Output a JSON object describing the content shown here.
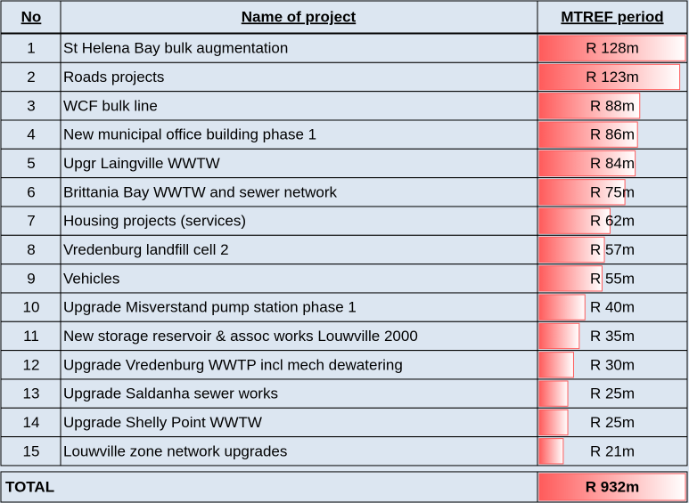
{
  "table": {
    "headers": [
      "No",
      "Name of project",
      "MTREF period"
    ],
    "rows": [
      {
        "no": 1,
        "name": "St Helena Bay bulk augmentation",
        "value": 128,
        "value_label": "R 128m"
      },
      {
        "no": 2,
        "name": "Roads projects",
        "value": 123,
        "value_label": "R 123m"
      },
      {
        "no": 3,
        "name": "WCF bulk line",
        "value": 88,
        "value_label": "R 88m"
      },
      {
        "no": 4,
        "name": "New municipal office building phase 1",
        "value": 86,
        "value_label": "R 86m"
      },
      {
        "no": 5,
        "name": "Upgr Laingville WWTW",
        "value": 84,
        "value_label": "R 84m"
      },
      {
        "no": 6,
        "name": "Brittania Bay WWTW and sewer network",
        "value": 75,
        "value_label": "R 75m"
      },
      {
        "no": 7,
        "name": "Housing projects (services)",
        "value": 62,
        "value_label": "R 62m"
      },
      {
        "no": 8,
        "name": "Vredenburg landfill cell 2",
        "value": 57,
        "value_label": "R 57m"
      },
      {
        "no": 9,
        "name": "Vehicles",
        "value": 55,
        "value_label": "R 55m"
      },
      {
        "no": 10,
        "name": "Upgrade Misverstand pump station phase 1",
        "value": 40,
        "value_label": "R 40m"
      },
      {
        "no": 11,
        "name": "New storage reservoir & assoc works Louwville 2000",
        "value": 35,
        "value_label": "R 35m"
      },
      {
        "no": 12,
        "name": "Upgrade Vredenburg WWTP incl mech dewatering",
        "value": 30,
        "value_label": "R 30m"
      },
      {
        "no": 13,
        "name": "Upgrade Saldanha sewer works",
        "value": 25,
        "value_label": "R 25m"
      },
      {
        "no": 14,
        "name": "Upgrade Shelly Point WWTW",
        "value": 25,
        "value_label": "R 25m"
      },
      {
        "no": 15,
        "name": "Louwville zone network upgrades",
        "value": 21,
        "value_label": "R 21m"
      }
    ],
    "total": {
      "label": "TOTAL",
      "value": 932,
      "value_label": "R 932m"
    }
  }
}
